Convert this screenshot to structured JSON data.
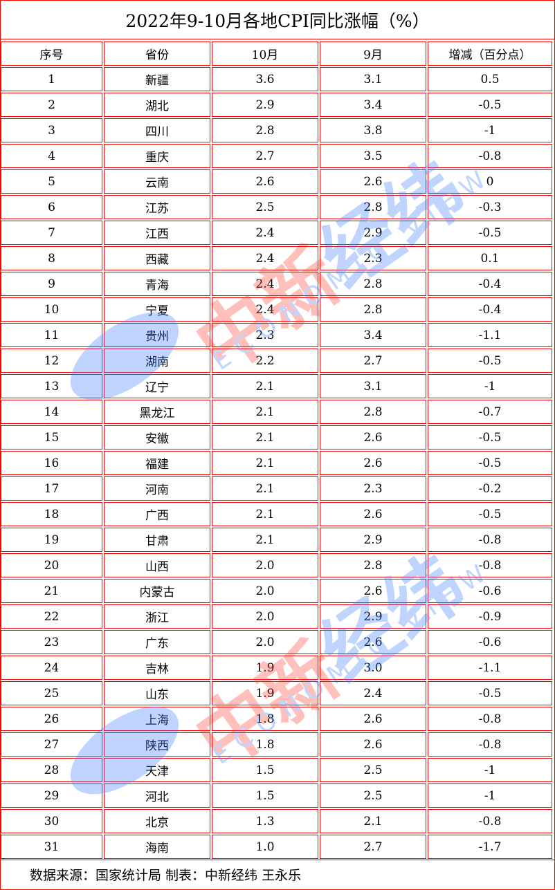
{
  "title": "2022年9-10月各地CPI同比涨幅（%）",
  "footer": "数据来源：国家统计局 制表：中新经纬 王永乐",
  "watermark": {
    "cn_red": "中新",
    "cn_blue": "经纬",
    "en": "ECONOMIC VIEW"
  },
  "colors": {
    "border": "#ff0000",
    "watermark_red": "#ff3b2f",
    "watermark_blue": "#3a7bff"
  },
  "chart_data": {
    "type": "table",
    "title": "2022年9-10月各地CPI同比涨幅（%）",
    "columns": [
      "序号",
      "省份",
      "10月",
      "9月",
      "增减（百分点）"
    ],
    "rows": [
      [
        "1",
        "新疆",
        "3.6",
        "3.1",
        "0.5"
      ],
      [
        "2",
        "湖北",
        "2.9",
        "3.4",
        "-0.5"
      ],
      [
        "3",
        "四川",
        "2.8",
        "3.8",
        "-1"
      ],
      [
        "4",
        "重庆",
        "2.7",
        "3.5",
        "-0.8"
      ],
      [
        "5",
        "云南",
        "2.6",
        "2.6",
        "0"
      ],
      [
        "6",
        "江苏",
        "2.5",
        "2.8",
        "-0.3"
      ],
      [
        "7",
        "江西",
        "2.4",
        "2.9",
        "-0.5"
      ],
      [
        "8",
        "西藏",
        "2.4",
        "2.3",
        "0.1"
      ],
      [
        "9",
        "青海",
        "2.4",
        "2.8",
        "-0.4"
      ],
      [
        "10",
        "宁夏",
        "2.4",
        "2.8",
        "-0.4"
      ],
      [
        "11",
        "贵州",
        "2.3",
        "3.4",
        "-1.1"
      ],
      [
        "12",
        "湖南",
        "2.2",
        "2.7",
        "-0.5"
      ],
      [
        "13",
        "辽宁",
        "2.1",
        "3.1",
        "-1"
      ],
      [
        "14",
        "黑龙江",
        "2.1",
        "2.8",
        "-0.7"
      ],
      [
        "15",
        "安徽",
        "2.1",
        "2.6",
        "-0.5"
      ],
      [
        "16",
        "福建",
        "2.1",
        "2.6",
        "-0.5"
      ],
      [
        "17",
        "河南",
        "2.1",
        "2.3",
        "-0.2"
      ],
      [
        "18",
        "广西",
        "2.1",
        "2.6",
        "-0.5"
      ],
      [
        "19",
        "甘肃",
        "2.1",
        "2.9",
        "-0.8"
      ],
      [
        "20",
        "山西",
        "2.0",
        "2.8",
        "-0.8"
      ],
      [
        "21",
        "内蒙古",
        "2.0",
        "2.6",
        "-0.6"
      ],
      [
        "22",
        "浙江",
        "2.0",
        "2.9",
        "-0.9"
      ],
      [
        "23",
        "广东",
        "2.0",
        "2.6",
        "-0.6"
      ],
      [
        "24",
        "吉林",
        "1.9",
        "3.0",
        "-1.1"
      ],
      [
        "25",
        "山东",
        "1.9",
        "2.4",
        "-0.5"
      ],
      [
        "26",
        "上海",
        "1.8",
        "2.6",
        "-0.8"
      ],
      [
        "27",
        "陕西",
        "1.8",
        "2.6",
        "-0.8"
      ],
      [
        "28",
        "天津",
        "1.5",
        "2.5",
        "-1"
      ],
      [
        "29",
        "河北",
        "1.5",
        "2.5",
        "-1"
      ],
      [
        "30",
        "北京",
        "1.3",
        "2.1",
        "-0.8"
      ],
      [
        "31",
        "海南",
        "1.0",
        "2.7",
        "-1.7"
      ]
    ]
  }
}
